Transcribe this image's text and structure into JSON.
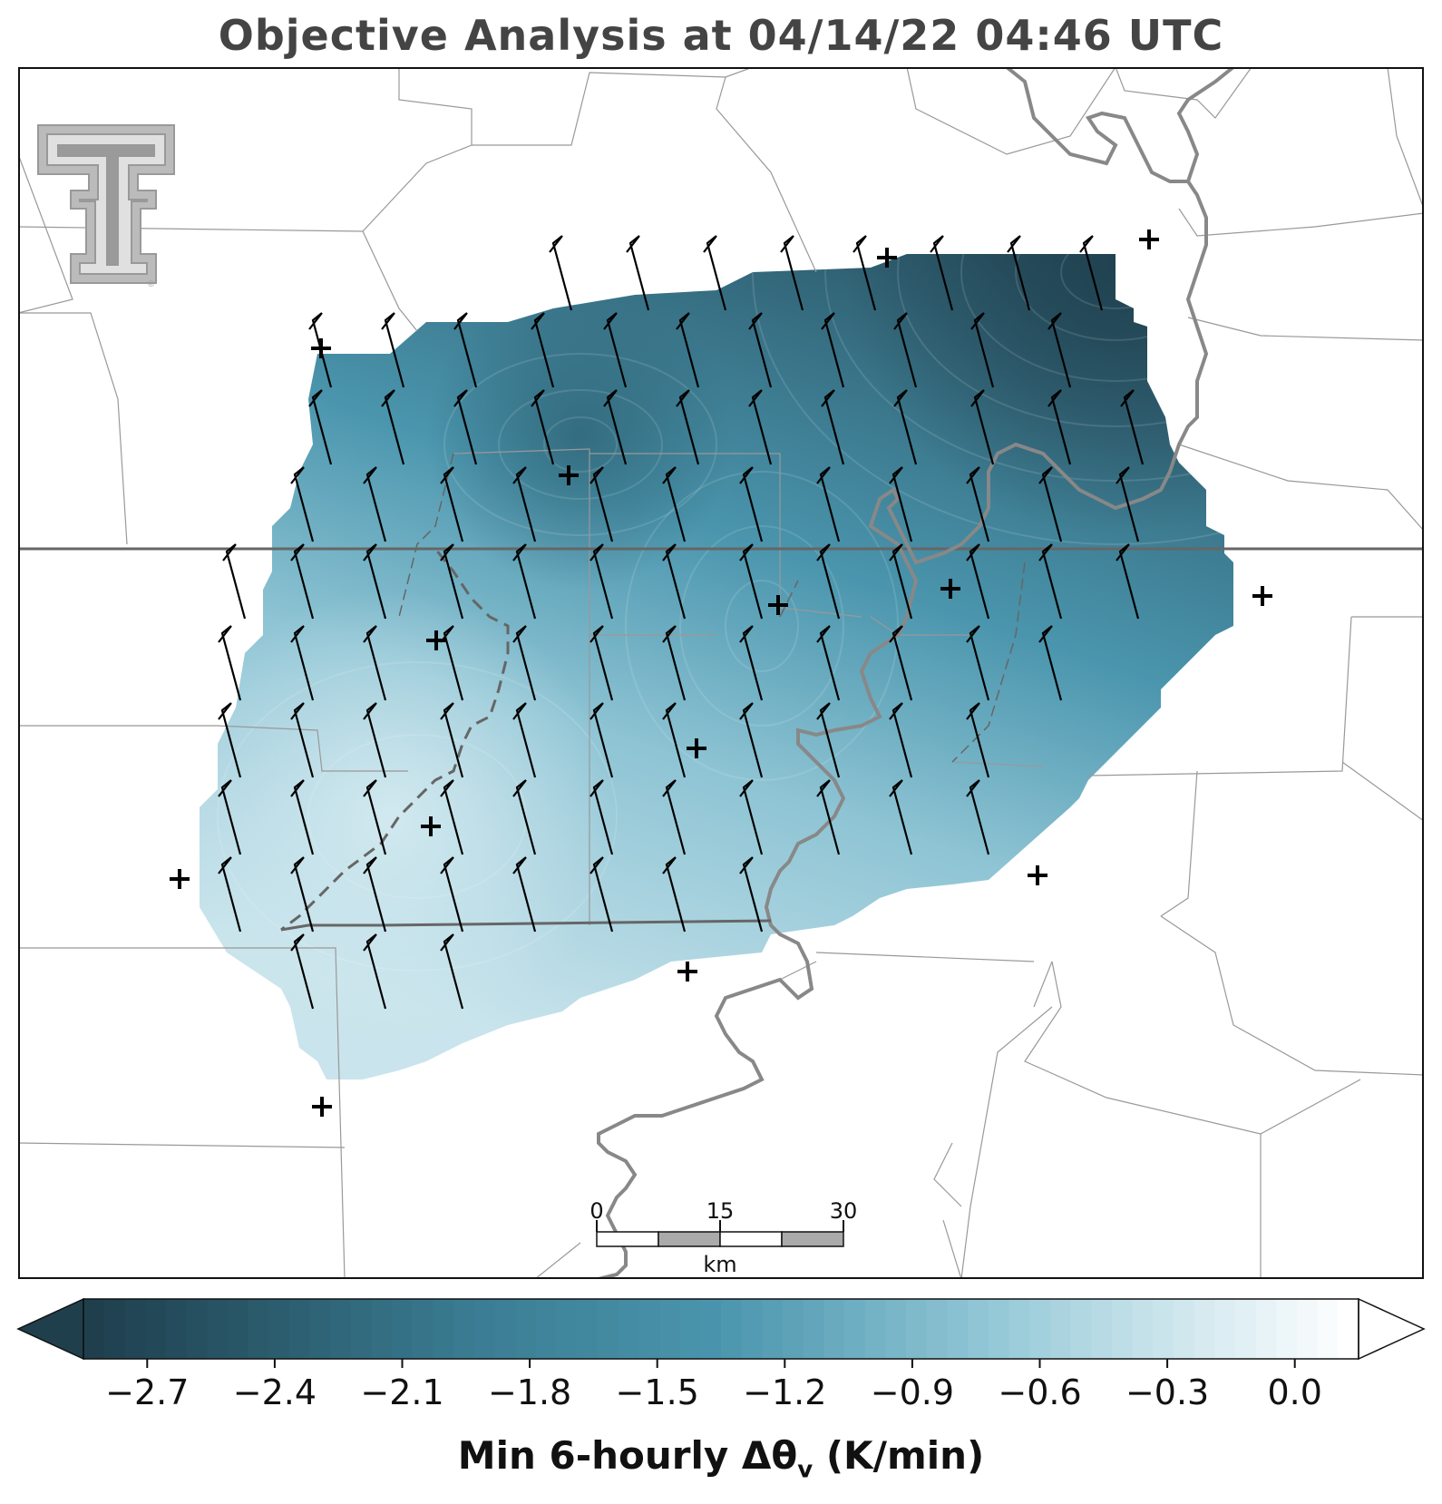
{
  "title": "Objective Analysis at 04/14/22 04:46 UTC",
  "colorbar": {
    "label_main": "Min 6-hourly Δθ",
    "label_sub": "v",
    "label_units": " (K/min)",
    "min": -2.85,
    "max": 0.15,
    "ticks": [
      "−2.7",
      "−2.4",
      "−2.1",
      "−1.8",
      "−1.5",
      "−1.2",
      "−0.9",
      "−0.6",
      "−0.3",
      "0.0"
    ],
    "tick_values": [
      -2.7,
      -2.4,
      -2.1,
      -1.8,
      -1.5,
      -1.2,
      -0.9,
      -0.6,
      -0.3,
      0.0
    ],
    "colors": {
      "darkest": "#1f3f4d",
      "mid": "#4a95ad",
      "light": "#c9e4ec",
      "lightest": "#ffffff"
    }
  },
  "scalebar": {
    "ticks": [
      "0",
      "15",
      "30"
    ],
    "unit": "km"
  },
  "logo": {
    "text": "TT",
    "name": "texas-tech-logo"
  }
}
